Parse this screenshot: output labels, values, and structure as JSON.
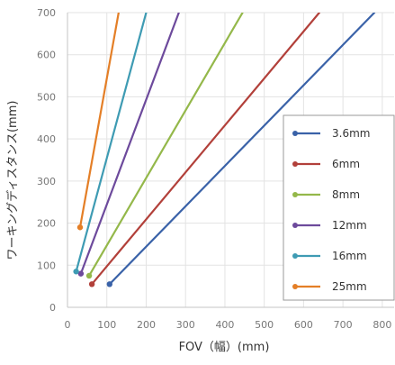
{
  "chart_data": {
    "type": "line",
    "xlabel": "FOV（幅）(mm)",
    "ylabel": "ワーキングディスタンス(mm)",
    "xlim": [
      0,
      830
    ],
    "ylim": [
      0,
      700
    ],
    "xticks": [
      0,
      100,
      200,
      300,
      400,
      500,
      600,
      700,
      800
    ],
    "yticks": [
      0,
      100,
      200,
      300,
      400,
      500,
      600,
      700
    ],
    "grid": true,
    "legend_position": "right",
    "series": [
      {
        "name": "3.6mm",
        "color": "#3a62a8",
        "points": [
          [
            107,
            55
          ],
          [
            780,
            700
          ]
        ]
      },
      {
        "name": "6mm",
        "color": "#b2403a",
        "points": [
          [
            62,
            55
          ],
          [
            640,
            700
          ]
        ]
      },
      {
        "name": "8mm",
        "color": "#94b84a",
        "points": [
          [
            55,
            75
          ],
          [
            445,
            700
          ]
        ]
      },
      {
        "name": "12mm",
        "color": "#6d4a9c",
        "points": [
          [
            34,
            80
          ],
          [
            283,
            700
          ]
        ]
      },
      {
        "name": "16mm",
        "color": "#3e9bb3",
        "points": [
          [
            22,
            85
          ],
          [
            200,
            700
          ]
        ]
      },
      {
        "name": "25mm",
        "color": "#e47f27",
        "points": [
          [
            32,
            190
          ],
          [
            130,
            700
          ]
        ]
      }
    ]
  }
}
